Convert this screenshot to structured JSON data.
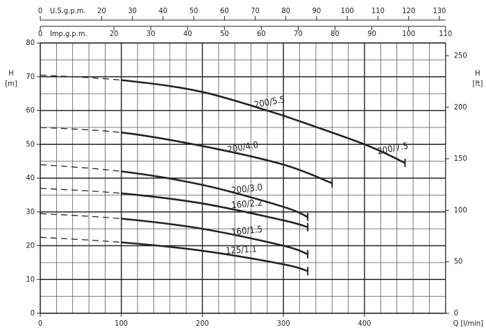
{
  "chart_data": {
    "type": "line",
    "x_label": "Q [l/min]",
    "y_label": "H\n[m]",
    "y2_label": "H\n[ft]",
    "xlim": [
      0,
      500
    ],
    "xticks": [
      0,
      100,
      200,
      300,
      400
    ],
    "ylim": [
      0,
      80
    ],
    "yticks": [
      0,
      10,
      20,
      30,
      40,
      50,
      60,
      70,
      80
    ],
    "y2lim": [
      0,
      262.5
    ],
    "y2ticks": [
      0,
      50,
      100,
      150,
      200,
      250
    ],
    "top_axes": [
      {
        "label": "U.S.g.p.m.",
        "lim": [
          0,
          132
        ],
        "ticks": [
          0,
          20,
          30,
          40,
          50,
          60,
          70,
          80,
          90,
          100,
          110,
          120,
          130
        ]
      },
      {
        "label": "Imp.g.p.m.",
        "lim": [
          0,
          110
        ],
        "ticks": [
          0,
          20,
          30,
          40,
          50,
          60,
          70,
          80,
          90,
          100,
          110
        ]
      }
    ],
    "grid": true,
    "minor_grid": {
      "x": 20,
      "y": 5
    },
    "dashed_to": 100,
    "color": "#222222",
    "series": [
      {
        "name": "200/5.5",
        "x": [
          0,
          100,
          200,
          300
        ],
        "values": [
          70.5,
          69,
          65.5,
          58.5
        ]
      },
      {
        "name": "200/7.5",
        "x": [
          300,
          400,
          450
        ],
        "values": [
          58.5,
          50,
          44.5
        ]
      },
      {
        "name": "200/4.0",
        "x": [
          0,
          100,
          200,
          300,
          360
        ],
        "values": [
          55,
          53.5,
          49.5,
          44,
          38.5
        ]
      },
      {
        "name": "200/3.0",
        "x": [
          0,
          100,
          200,
          300,
          330
        ],
        "values": [
          44,
          42,
          38,
          31.5,
          28.5
        ]
      },
      {
        "name": "160/2.2",
        "x": [
          0,
          100,
          200,
          300,
          330
        ],
        "values": [
          37,
          35.5,
          32.5,
          27.5,
          25.5
        ]
      },
      {
        "name": "160/1.5",
        "x": [
          0,
          100,
          200,
          300,
          330
        ],
        "values": [
          29.5,
          28,
          25,
          20,
          17.5
        ]
      },
      {
        "name": "125/1.1",
        "x": [
          0,
          100,
          200,
          300,
          330
        ],
        "values": [
          22.5,
          21,
          18.5,
          14.5,
          12.5
        ]
      }
    ]
  }
}
